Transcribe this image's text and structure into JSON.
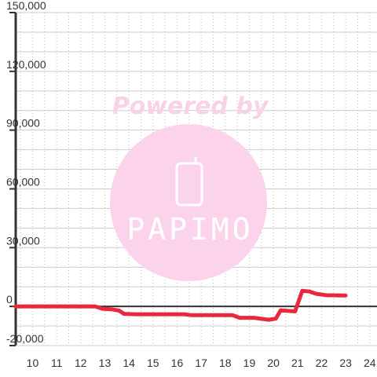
{
  "watermark": {
    "text": "Powered by",
    "brand": "PAPIMO",
    "color": "#fbd3ea"
  },
  "chart_data": {
    "type": "line",
    "title": "",
    "xlabel": "",
    "ylabel": "",
    "xlim": [
      9.3,
      24.3
    ],
    "ylim": [
      -20000,
      150000
    ],
    "grid": true,
    "x_ticks": [
      10,
      11,
      12,
      13,
      14,
      15,
      16,
      17,
      18,
      19,
      20,
      21,
      22,
      23,
      24
    ],
    "x_tick_labels": [
      "10",
      "11",
      "12",
      "13",
      "14",
      "15",
      "16",
      "17",
      "18",
      "19",
      "20",
      "21",
      "22",
      "23",
      "24"
    ],
    "y_ticks": [
      -20000,
      0,
      30000,
      60000,
      90000,
      120000,
      150000
    ],
    "y_tick_labels": [
      "-20,000",
      "0",
      "30,000",
      "60,000",
      "90,000",
      "120,000",
      "150,000"
    ],
    "line_color": "#e8283c",
    "series": [
      {
        "x": [
          9.3,
          12.6,
          12.9,
          13.3,
          13.6,
          13.8,
          14.3,
          16.3,
          16.6,
          18.3,
          18.6,
          19.2,
          19.6,
          19.8,
          20.1,
          20.3,
          20.5,
          20.9,
          21.2,
          21.5,
          21.8,
          22.2,
          23.0
        ],
        "y": [
          0,
          0,
          -1200,
          -1500,
          -2200,
          -3800,
          -4000,
          -4000,
          -4500,
          -4500,
          -5800,
          -5800,
          -6500,
          -6800,
          -6200,
          -2000,
          -2200,
          -2500,
          8000,
          7600,
          6400,
          5700,
          5600
        ]
      }
    ]
  }
}
